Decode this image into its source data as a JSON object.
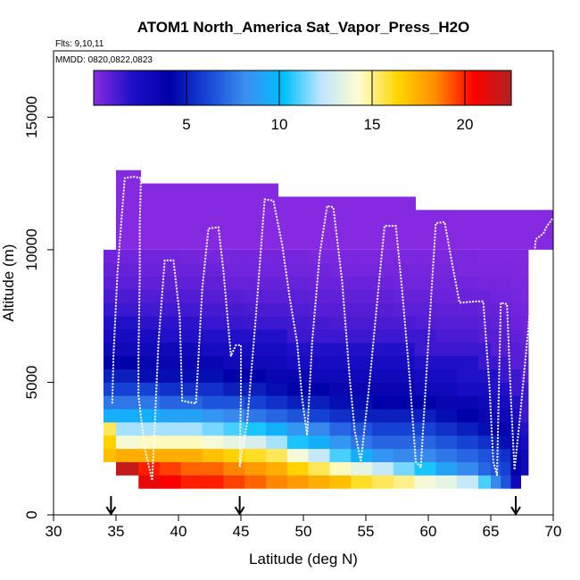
{
  "chart_data": {
    "type": "heatmap",
    "title": "ATOM1 North_America Sat_Vapor_Press_H2O",
    "flights_label": "Flts: 9,10,11",
    "dates_label": "MMDD: 0820,0822,0823",
    "xlabel": "Latitude (deg N)",
    "ylabel": "Altitude (m)",
    "xlim": [
      30,
      70
    ],
    "ylim": [
      0,
      17500
    ],
    "x_ticks": [
      "30",
      "35",
      "40",
      "45",
      "50",
      "55",
      "60",
      "65",
      "70"
    ],
    "x_tick_values": [
      30,
      35,
      40,
      45,
      50,
      55,
      60,
      65,
      70
    ],
    "y_ticks": [
      "0",
      "5000",
      "10000",
      "15000"
    ],
    "y_tick_values": [
      0,
      5000,
      10000,
      15000
    ],
    "colorbar": {
      "min": 0,
      "max": 22.5,
      "ticks": [
        "5",
        "10",
        "15",
        "20"
      ],
      "tick_values": [
        5,
        10,
        15,
        20
      ],
      "colors": [
        "#8a2be2",
        "#1e10c8",
        "#0000a8",
        "#1846d8",
        "#3b8ff0",
        "#00bfff",
        "#bfe6ff",
        "#fffdd0",
        "#ffd700",
        "#ff8c00",
        "#ff0000",
        "#b22222"
      ]
    },
    "arrows_latitude": [
      34.6,
      44.9,
      67.0
    ],
    "columns": [
      {
        "x0": 34.0,
        "x1": 35.0,
        "top": 10000
      },
      {
        "x0": 35.0,
        "x1": 37.0,
        "top": 13000
      },
      {
        "x0": 37.0,
        "x1": 48.0,
        "top": 12500
      },
      {
        "x0": 48.0,
        "x1": 59.0,
        "top": 12000
      },
      {
        "x0": 59.0,
        "x1": 70.0,
        "top": 11500
      }
    ],
    "layers": [
      {
        "bottom": 1000,
        "top": 1500,
        "values": [
          null,
          null,
          21,
          20.5,
          20,
          20,
          19.5,
          19,
          18.5,
          18,
          17.5,
          17,
          16,
          15.5,
          15,
          14,
          13.5,
          12.5,
          11,
          8,
          6.5,
          3,
          null
        ]
      },
      {
        "bottom": 1500,
        "top": 2000,
        "values": [
          null,
          22,
          20,
          19.5,
          19,
          19,
          18.5,
          18,
          17.5,
          16.5,
          15.5,
          14.5,
          13.5,
          12.5,
          11.5,
          10.5,
          9,
          8,
          7,
          6.5,
          6,
          4,
          3
        ]
      },
      {
        "bottom": 2000,
        "top": 2500,
        "values": [
          17,
          17.5,
          17.5,
          17.5,
          17.5,
          17,
          16.5,
          16,
          15.5,
          14,
          12.5,
          11,
          9.5,
          8.5,
          8,
          8,
          7.5,
          7,
          6.5,
          6,
          5.5,
          4,
          3
        ]
      },
      {
        "bottom": 2500,
        "top": 3000,
        "values": [
          16.5,
          14,
          14.5,
          14.5,
          14.5,
          14,
          13.5,
          13,
          12,
          10.5,
          9.5,
          8.5,
          7.5,
          7,
          7,
          7,
          6.5,
          6,
          5.5,
          5,
          4.5,
          3.5,
          2.5
        ]
      },
      {
        "bottom": 3000,
        "top": 3500,
        "values": [
          15.5,
          12,
          12,
          12,
          12,
          11.5,
          11,
          10.5,
          9.5,
          8.5,
          8,
          7,
          6.5,
          6,
          6,
          6,
          5.5,
          5,
          4.5,
          4,
          3.5,
          3,
          2
        ]
      },
      {
        "bottom": 3500,
        "top": 4000,
        "values": [
          9.5,
          9.5,
          9.5,
          9,
          9,
          8.5,
          8,
          7.5,
          7,
          6.5,
          6,
          5.5,
          5,
          5,
          5,
          5,
          4.5,
          4,
          3.5,
          3,
          3,
          2.5,
          1.5
        ]
      },
      {
        "bottom": 4000,
        "top": 4500,
        "values": [
          7.5,
          7.5,
          7.5,
          7,
          7,
          6.5,
          6.5,
          6,
          5.5,
          5,
          5,
          4.5,
          4.5,
          4,
          4,
          4,
          3.5,
          3.5,
          3,
          2.5,
          2.5,
          2,
          1.5
        ]
      },
      {
        "bottom": 4500,
        "top": 5000,
        "values": [
          6,
          6,
          6,
          5.5,
          5.5,
          5.5,
          5,
          5,
          4.5,
          4,
          4,
          3.5,
          3.5,
          3.5,
          3.5,
          3,
          3,
          2.5,
          2.5,
          2,
          2,
          1.5,
          1.5
        ]
      },
      {
        "bottom": 5000,
        "top": 5500,
        "values": [
          5,
          5,
          4.5,
          4.5,
          4.5,
          4.5,
          4,
          4,
          3.5,
          3.5,
          3,
          3,
          3,
          3,
          3,
          2.5,
          2.5,
          2,
          2,
          2,
          1.5,
          1.5,
          1
        ]
      },
      {
        "bottom": 5500,
        "top": 6000,
        "values": [
          4,
          4,
          3.5,
          3.5,
          3.5,
          3.5,
          3,
          3,
          3,
          2.5,
          2.5,
          2.5,
          2.5,
          2.5,
          2.5,
          2,
          2,
          2,
          1.5,
          1.5,
          1.5,
          1,
          1
        ]
      },
      {
        "bottom": 6000,
        "top": 6500,
        "values": [
          3,
          3,
          3,
          3,
          3,
          2.5,
          2.5,
          2.5,
          2.5,
          2,
          2,
          2,
          2,
          2,
          2,
          1.5,
          1.5,
          1.5,
          1.5,
          1,
          1,
          1,
          0.8
        ]
      },
      {
        "bottom": 6500,
        "top": 7000,
        "values": [
          2.5,
          2.5,
          2.5,
          2,
          2,
          2,
          2,
          2,
          2,
          1.5,
          1.5,
          1.5,
          1.5,
          1.5,
          1.5,
          1.5,
          1.2,
          1.2,
          1,
          1,
          1,
          0.8,
          0.6
        ]
      },
      {
        "bottom": 7000,
        "top": 7500,
        "values": [
          2,
          2,
          1.8,
          1.8,
          1.8,
          1.6,
          1.6,
          1.5,
          1.5,
          1.4,
          1.3,
          1.2,
          1.2,
          1.2,
          1.2,
          1.1,
          1,
          1,
          0.9,
          0.8,
          0.8,
          0.6,
          0.5
        ]
      },
      {
        "bottom": 7500,
        "top": 8000,
        "values": [
          1.6,
          1.5,
          1.4,
          1.4,
          1.4,
          1.3,
          1.3,
          1.2,
          1.2,
          1.1,
          1,
          1,
          1,
          1,
          0.9,
          0.9,
          0.8,
          0.8,
          0.7,
          0.7,
          0.6,
          0.5,
          0.4
        ]
      },
      {
        "bottom": 8000,
        "top": 8500,
        "values": [
          1.2,
          1.2,
          1.1,
          1.1,
          1.1,
          1,
          1,
          0.9,
          0.9,
          0.9,
          0.8,
          0.8,
          0.8,
          0.8,
          0.7,
          0.7,
          0.6,
          0.6,
          0.6,
          0.5,
          0.5,
          0.4,
          0.3
        ]
      },
      {
        "bottom": 8500,
        "top": 9000,
        "values": [
          0.9,
          0.9,
          0.8,
          0.8,
          0.8,
          0.8,
          0.7,
          0.7,
          0.7,
          0.7,
          0.6,
          0.6,
          0.6,
          0.6,
          0.5,
          0.5,
          0.5,
          0.5,
          0.4,
          0.4,
          0.4,
          0.3,
          0.3
        ]
      },
      {
        "bottom": 9000,
        "top": 9500,
        "values": [
          0.7,
          0.7,
          0.6,
          0.6,
          0.6,
          0.6,
          0.5,
          0.5,
          0.5,
          0.5,
          0.5,
          0.4,
          0.4,
          0.4,
          0.4,
          0.4,
          0.4,
          0.3,
          0.3,
          0.3,
          0.3,
          0.3,
          0.2
        ]
      },
      {
        "bottom": 9500,
        "top": 10000,
        "values": [
          0.5,
          0.5,
          0.5,
          0.5,
          0.4,
          0.4,
          0.4,
          0.4,
          0.4,
          0.4,
          0.3,
          0.3,
          0.3,
          0.3,
          0.3,
          0.3,
          0.3,
          0.3,
          0.2,
          0.2,
          0.2,
          0.2,
          0.2
        ]
      }
    ],
    "layer_columns": [
      [
        34.0,
        35.0
      ],
      [
        35.0,
        36.8
      ],
      [
        36.8,
        38.5
      ],
      [
        38.5,
        40.2
      ],
      [
        40.2,
        41.9
      ],
      [
        41.9,
        43.6
      ],
      [
        43.6,
        45.3
      ],
      [
        45.3,
        47.0
      ],
      [
        47.0,
        48.7
      ],
      [
        48.7,
        50.4
      ],
      [
        50.4,
        52.1
      ],
      [
        52.1,
        53.8
      ],
      [
        53.8,
        55.5
      ],
      [
        55.5,
        57.2
      ],
      [
        57.2,
        58.9
      ],
      [
        58.9,
        60.6
      ],
      [
        60.6,
        62.3
      ],
      [
        62.3,
        64.0
      ],
      [
        64.0,
        65.0
      ],
      [
        65.0,
        65.8
      ],
      [
        65.8,
        66.6
      ],
      [
        66.6,
        67.4
      ],
      [
        67.4,
        68.0
      ]
    ],
    "flight_track": [
      [
        34.7,
        4200
      ],
      [
        34.8,
        6000
      ],
      [
        35.1,
        9000
      ],
      [
        35.4,
        10900
      ],
      [
        35.7,
        12700
      ],
      [
        36.4,
        12750
      ],
      [
        37.0,
        12700
      ],
      [
        36.9,
        11000
      ],
      [
        36.9,
        9000
      ],
      [
        36.8,
        6000
      ],
      [
        36.8,
        4500
      ],
      [
        37.3,
        2500
      ],
      [
        37.9,
        1300
      ],
      [
        38.4,
        6500
      ],
      [
        38.9,
        9600
      ],
      [
        39.6,
        9600
      ],
      [
        40.1,
        7500
      ],
      [
        40.3,
        4300
      ],
      [
        41.4,
        4200
      ],
      [
        41.9,
        8500
      ],
      [
        42.4,
        10800
      ],
      [
        43.2,
        10850
      ],
      [
        43.6,
        9200
      ],
      [
        44.2,
        6000
      ],
      [
        44.6,
        6400
      ],
      [
        45.0,
        6400
      ],
      [
        45.0,
        4500
      ],
      [
        44.9,
        1800
      ],
      [
        45.5,
        3500
      ],
      [
        46.2,
        7500
      ],
      [
        46.9,
        11900
      ],
      [
        47.6,
        11850
      ],
      [
        48.3,
        10200
      ],
      [
        48.9,
        8200
      ],
      [
        49.5,
        6500
      ],
      [
        49.9,
        4400
      ],
      [
        50.3,
        3000
      ],
      [
        50.7,
        6500
      ],
      [
        51.3,
        9800
      ],
      [
        51.9,
        11650
      ],
      [
        52.4,
        11600
      ],
      [
        53.1,
        8800
      ],
      [
        53.7,
        5200
      ],
      [
        54.1,
        3200
      ],
      [
        54.6,
        2000
      ],
      [
        55.3,
        5000
      ],
      [
        56.0,
        8500
      ],
      [
        56.5,
        10900
      ],
      [
        57.4,
        10900
      ],
      [
        57.9,
        8500
      ],
      [
        58.5,
        5200
      ],
      [
        59.0,
        2000
      ],
      [
        59.4,
        1800
      ],
      [
        60.0,
        6500
      ],
      [
        60.6,
        11000
      ],
      [
        61.3,
        11050
      ],
      [
        61.9,
        9500
      ],
      [
        62.5,
        8000
      ],
      [
        63.8,
        8050
      ],
      [
        64.4,
        8050
      ],
      [
        64.9,
        4800
      ],
      [
        65.2,
        2000
      ],
      [
        65.5,
        1500
      ],
      [
        65.8,
        8000
      ],
      [
        66.3,
        7950
      ],
      [
        66.6,
        4500
      ],
      [
        66.9,
        1700
      ],
      [
        67.3,
        3500
      ],
      [
        68.0,
        7000
      ],
      [
        68.6,
        10400
      ],
      [
        69.2,
        10600
      ],
      [
        69.5,
        10900
      ],
      [
        70.0,
        11200
      ]
    ]
  }
}
